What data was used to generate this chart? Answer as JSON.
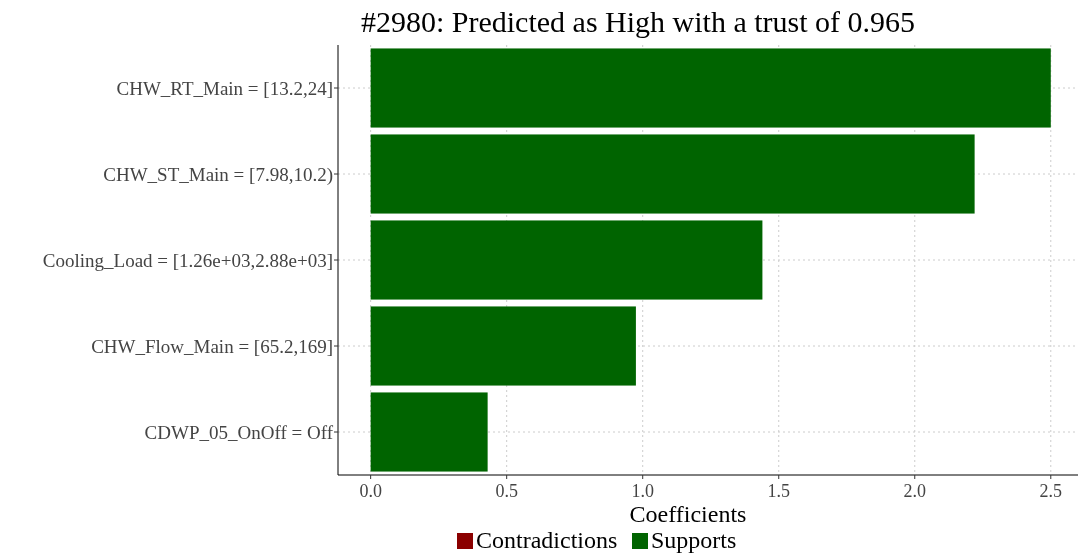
{
  "chart_data": {
    "type": "bar",
    "orientation": "horizontal",
    "title": "#2980: Predicted as High with a trust of 0.965",
    "xlabel": "Coefficients",
    "categories": [
      "CHW_RT_Main = [13.2,24]",
      "CHW_ST_Main = [7.98,10.2)",
      "Cooling_Load = [1.26e+03,2.88e+03]",
      "CHW_Flow_Main = [65.2,169]",
      "CDWP_05_OnOff = Off"
    ],
    "series": [
      {
        "name": "Contradictions",
        "color": "#8b0000",
        "values": [
          null,
          null,
          null,
          null,
          null
        ]
      },
      {
        "name": "Supports",
        "color": "#006400",
        "values": [
          2.5,
          2.22,
          1.44,
          0.975,
          0.43
        ]
      }
    ],
    "xlim": [
      -0.12,
      2.6
    ],
    "xticks": [
      {
        "value": 0,
        "label": "0.0"
      },
      0.5,
      {
        "value": 1,
        "label": "1.0"
      },
      1.5,
      {
        "value": 2,
        "label": "2.0"
      },
      2.5
    ],
    "grid": true,
    "legend": "bottom"
  }
}
